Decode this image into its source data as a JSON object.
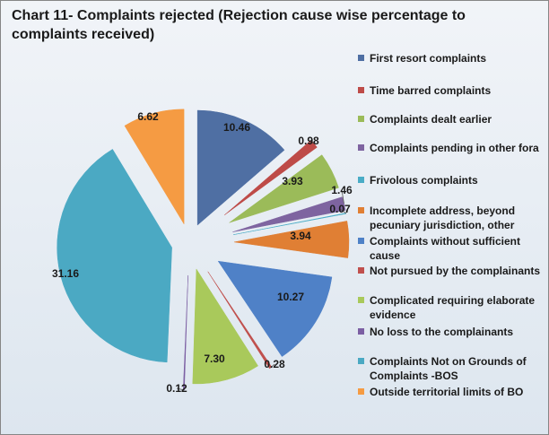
{
  "chart_data": {
    "type": "pie",
    "title": "Chart 11-  Complaints rejected (Rejection cause wise percentage  to complaints received)",
    "legend_position": "right",
    "exploded": true,
    "slices": [
      {
        "label": "First resort complaints",
        "value": 10.46,
        "display": "10.46",
        "color": "#4f6fa3"
      },
      {
        "label": "Time barred complaints",
        "value": 0.98,
        "display": "0.98",
        "color": "#be4b48"
      },
      {
        "label": "Complaints dealt earlier",
        "value": 3.93,
        "display": "3.93",
        "color": "#9bbb59"
      },
      {
        "label": "Complaints pending in other fora",
        "value": 1.46,
        "display": "1.46",
        "color": "#7e64a0"
      },
      {
        "label": "Frivolous complaints",
        "value": 0.07,
        "display": "0.07",
        "color": "#4aacc6"
      },
      {
        "label": "Incomplete address, beyond pecuniary jurisdiction, other",
        "value": 3.94,
        "display": "3.94",
        "color": "#e07f34"
      },
      {
        "label": "Complaints without sufficient cause",
        "value": 10.27,
        "display": "10.27",
        "color": "#4f81c7"
      },
      {
        "label": "Not pursued by the complainants",
        "value": 0.28,
        "display": "0.28",
        "color": "#c0504d"
      },
      {
        "label": "Complicated requiring elaborate evidence",
        "value": 7.3,
        "display": "7.30",
        "color": "#a9c95b"
      },
      {
        "label": "No loss to the complainants",
        "value": 0.12,
        "display": "0.12",
        "color": "#7c5fa3"
      },
      {
        "label": "Complaints Not on Grounds of Complaints -BOS",
        "value": 31.16,
        "display": "31.16",
        "color": "#4ba9c3"
      },
      {
        "label": "Outside territorial limits of BO",
        "value": 6.62,
        "display": "6.62",
        "color": "#f59b43"
      }
    ]
  }
}
